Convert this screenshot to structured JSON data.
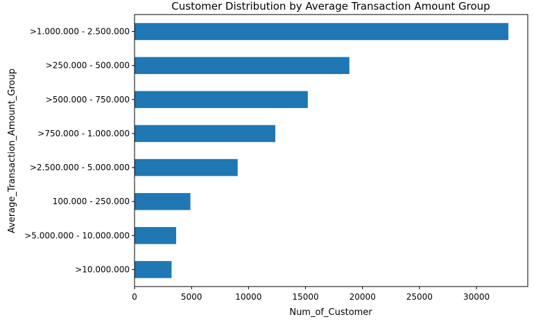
{
  "chart_data": {
    "type": "bar",
    "orientation": "horizontal",
    "title": "Customer Distribution by Average Transaction Amount Group",
    "xlabel": "Num_of_Customer",
    "ylabel": "Average_Transaction_Amount_Group",
    "categories": [
      ">1.000.000 - 2.500.000",
      ">250.000 - 500.000",
      ">500.000 - 750.000",
      ">750.000 - 1.000.000",
      ">2.500.000 - 5.000.000",
      "100.000 - 250.000",
      ">5.000.000 - 10.000.000",
      ">10.000.000"
    ],
    "values": [
      32800,
      18850,
      15200,
      12350,
      9050,
      4900,
      3650,
      3250
    ],
    "xlim": [
      0,
      34500
    ],
    "xticks": [
      0,
      5000,
      10000,
      15000,
      20000,
      25000,
      30000
    ],
    "bar_color": "#1f77b4",
    "grid": false,
    "legend": "none"
  }
}
